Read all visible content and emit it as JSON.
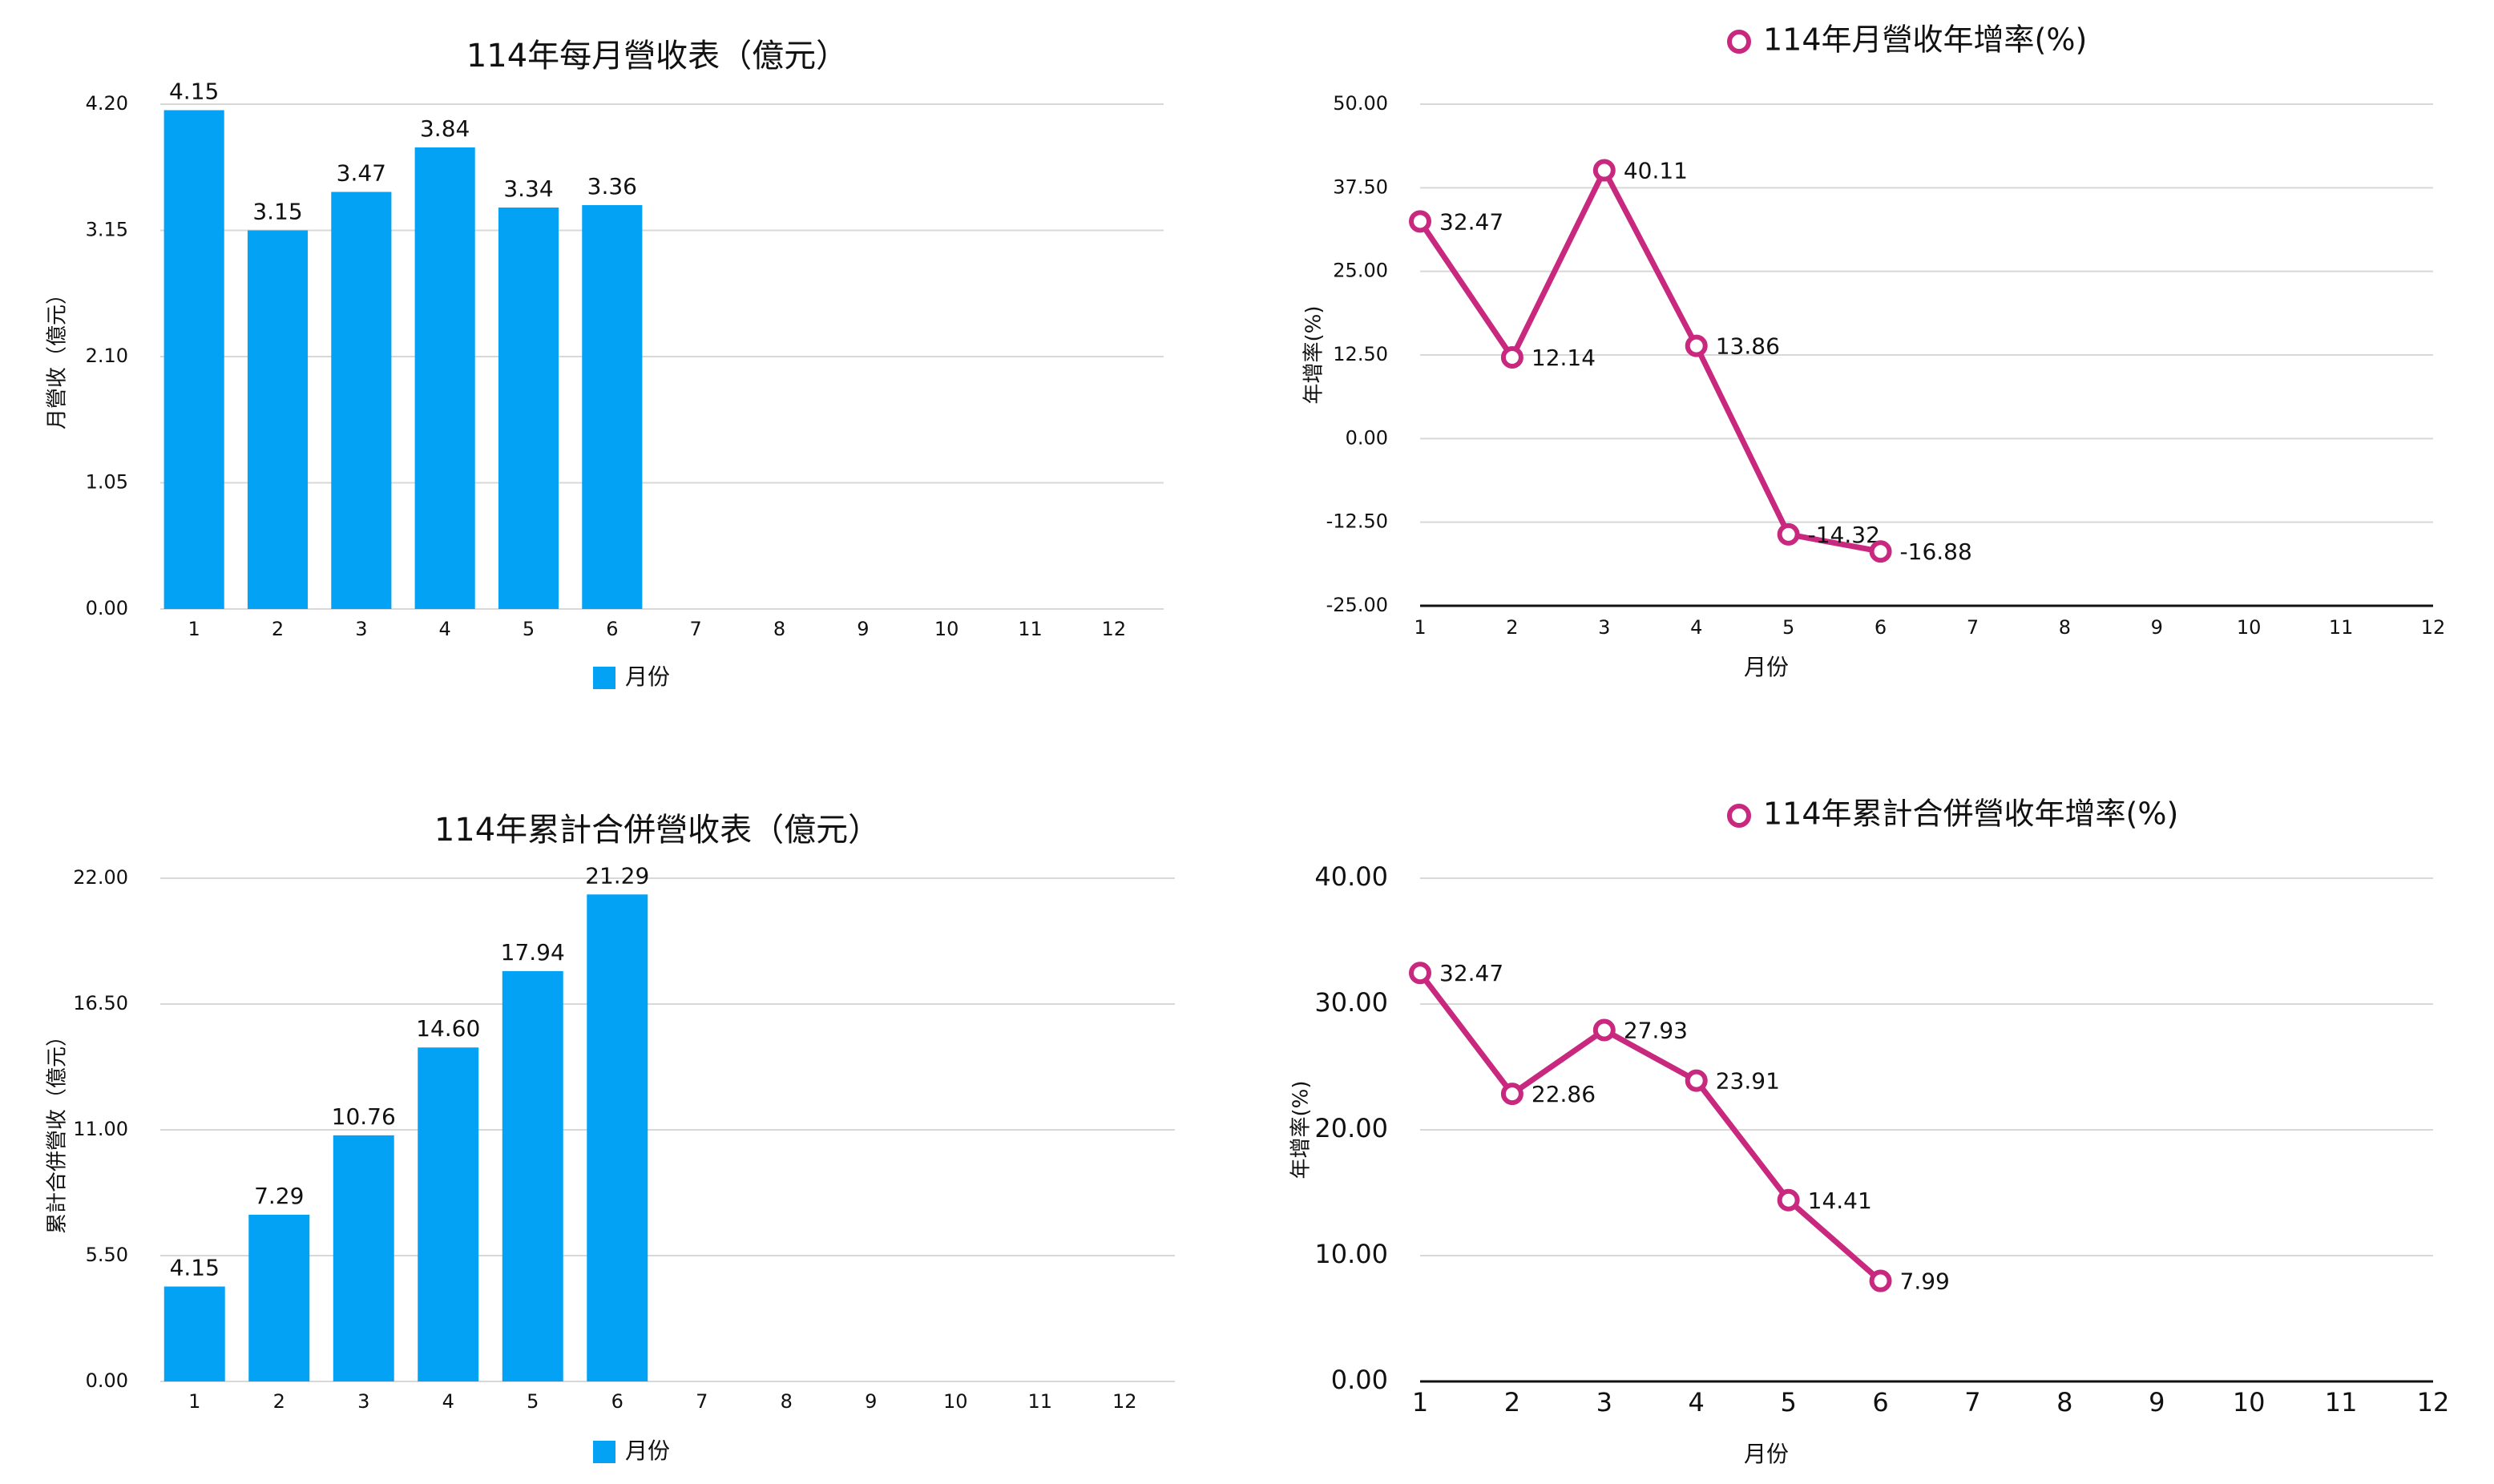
{
  "chart_data": [
    {
      "type": "bar",
      "title": "114年每月營收表（億元）",
      "y_label": "月營收（億元）",
      "categories": [
        "1",
        "2",
        "3",
        "4",
        "5",
        "6",
        "7",
        "8",
        "9",
        "10",
        "11",
        "12"
      ],
      "series": [
        {
          "name": "月份",
          "color": "#03A2F5",
          "values": [
            4.15,
            3.15,
            3.47,
            3.84,
            3.34,
            3.36,
            null,
            null,
            null,
            null,
            null,
            null
          ]
        }
      ],
      "ylim": [
        0,
        4.2
      ],
      "yticks": [
        {
          "value": 0,
          "label": "0.00"
        },
        {
          "value": 1.05,
          "label": "1.05"
        },
        {
          "value": 2.1,
          "label": "2.10"
        },
        {
          "value": 3.15,
          "label": "3.15"
        },
        {
          "value": 4.2,
          "label": "4.20"
        }
      ],
      "grid": true,
      "legend": "bottom"
    },
    {
      "type": "line",
      "x_label": "月份",
      "y_label": "年增率(%)",
      "categories": [
        "1",
        "2",
        "3",
        "4",
        "5",
        "6",
        "7",
        "8",
        "9",
        "10",
        "11",
        "12"
      ],
      "series": [
        {
          "name": "114年月營收年增率(%)",
          "color": "#C8287E",
          "values": [
            32.47,
            12.14,
            40.11,
            13.86,
            -14.32,
            -16.88,
            null,
            null,
            null,
            null,
            null,
            null
          ]
        }
      ],
      "ylim": [
        -25,
        50
      ],
      "yticks": [
        {
          "value": -25,
          "label": "-25.00"
        },
        {
          "value": -12.5,
          "label": "-12.50"
        },
        {
          "value": 0,
          "label": "0.00"
        },
        {
          "value": 12.5,
          "label": "12.50"
        },
        {
          "value": 25,
          "label": "25.00"
        },
        {
          "value": 37.5,
          "label": "37.50"
        },
        {
          "value": 50,
          "label": "50.00"
        }
      ],
      "grid": true,
      "legend": "top"
    },
    {
      "type": "bar",
      "title": "114年累計合併營收表（億元）",
      "y_label": "累計合併營收（億元）",
      "categories": [
        "1",
        "2",
        "3",
        "4",
        "5",
        "6",
        "7",
        "8",
        "9",
        "10",
        "11",
        "12"
      ],
      "series": [
        {
          "name": "月份",
          "color": "#03A2F5",
          "values": [
            4.15,
            7.29,
            10.76,
            14.6,
            17.94,
            21.29,
            null,
            null,
            null,
            null,
            null,
            null
          ],
          "value_labels": [
            "4.15",
            "7.29",
            "10.76",
            "14.60",
            "17.94",
            "21.29",
            null,
            null,
            null,
            null,
            null,
            null
          ]
        }
      ],
      "ylim": [
        0,
        22
      ],
      "yticks": [
        {
          "value": 0,
          "label": "0.00"
        },
        {
          "value": 5.5,
          "label": "5.50"
        },
        {
          "value": 11,
          "label": "11.00"
        },
        {
          "value": 16.5,
          "label": "16.50"
        },
        {
          "value": 22,
          "label": "22.00"
        }
      ],
      "grid": true,
      "legend": "bottom"
    },
    {
      "type": "line",
      "x_label": "月份",
      "y_label": "年增率(%)",
      "categories": [
        "1",
        "2",
        "3",
        "4",
        "5",
        "6",
        "7",
        "8",
        "9",
        "10",
        "11",
        "12"
      ],
      "series": [
        {
          "name": "114年累計合併營收年增率(%)",
          "color": "#C8287E",
          "values": [
            32.47,
            22.86,
            27.93,
            23.91,
            14.41,
            7.99,
            null,
            null,
            null,
            null,
            null,
            null
          ]
        }
      ],
      "ylim": [
        0,
        40
      ],
      "yticks": [
        {
          "value": 0,
          "label": "0.00"
        },
        {
          "value": 10,
          "label": "10.00"
        },
        {
          "value": 20,
          "label": "20.00"
        },
        {
          "value": 30,
          "label": "30.00"
        },
        {
          "value": 40,
          "label": "40.00"
        }
      ],
      "grid": true,
      "legend": "top"
    }
  ]
}
